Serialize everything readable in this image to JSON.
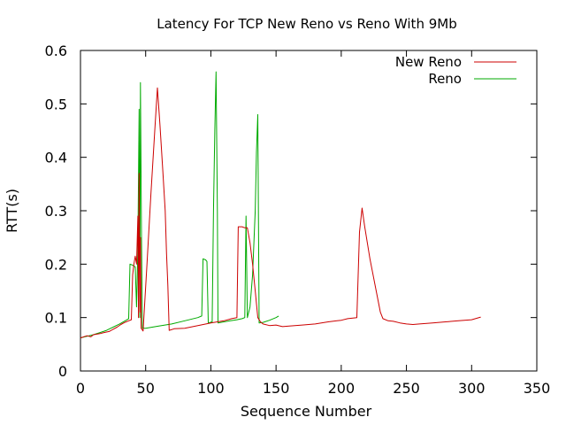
{
  "chart_data": {
    "type": "line",
    "title": "Latency For TCP New Reno vs Reno With 9Mb",
    "xlabel": "Sequence Number",
    "ylabel": "RTT(s)",
    "xlim": [
      0,
      350
    ],
    "ylim": [
      0,
      0.6
    ],
    "x_ticks": [
      0,
      50,
      100,
      150,
      200,
      250,
      300,
      350
    ],
    "y_ticks": [
      0,
      0.1,
      0.2,
      0.3,
      0.4,
      0.5,
      0.6
    ],
    "x_tick_labels": [
      "0",
      "50",
      "100",
      "150",
      "200",
      "250",
      "300",
      "350"
    ],
    "y_tick_labels": [
      "0",
      "0.1",
      "0.2",
      "0.3",
      "0.4",
      "0.5",
      "0.6"
    ],
    "grid": false,
    "legend_position": "top-right",
    "series": [
      {
        "name": "New Reno",
        "color": "#cc0000",
        "points": [
          [
            0,
            0.062
          ],
          [
            5,
            0.066
          ],
          [
            8,
            0.064
          ],
          [
            10,
            0.068
          ],
          [
            15,
            0.07
          ],
          [
            18,
            0.072
          ],
          [
            22,
            0.074
          ],
          [
            25,
            0.078
          ],
          [
            28,
            0.082
          ],
          [
            31,
            0.087
          ],
          [
            34,
            0.091
          ],
          [
            37,
            0.094
          ],
          [
            39,
            0.096
          ],
          [
            40,
            0.18
          ],
          [
            41,
            0.2
          ],
          [
            42,
            0.215
          ],
          [
            43,
            0.2
          ],
          [
            44,
            0.29
          ],
          [
            44.5,
            0.1
          ],
          [
            45,
            0.37
          ],
          [
            45.6,
            0.11
          ],
          [
            46,
            0.25
          ],
          [
            46.5,
            0.08
          ],
          [
            48,
            0.075
          ],
          [
            51,
            0.2
          ],
          [
            54,
            0.33
          ],
          [
            57,
            0.45
          ],
          [
            59,
            0.53
          ],
          [
            61,
            0.46
          ],
          [
            63,
            0.38
          ],
          [
            65,
            0.3
          ],
          [
            66,
            0.22
          ],
          [
            67,
            0.16
          ],
          [
            68,
            0.076
          ],
          [
            72,
            0.079
          ],
          [
            80,
            0.08
          ],
          [
            90,
            0.085
          ],
          [
            100,
            0.09
          ],
          [
            110,
            0.094
          ],
          [
            116,
            0.098
          ],
          [
            120,
            0.1
          ],
          [
            121,
            0.27
          ],
          [
            124,
            0.27
          ],
          [
            126,
            0.268
          ],
          [
            128,
            0.268
          ],
          [
            130,
            0.24
          ],
          [
            132,
            0.2
          ],
          [
            134,
            0.15
          ],
          [
            136,
            0.1
          ],
          [
            138,
            0.092
          ],
          [
            140,
            0.088
          ],
          [
            145,
            0.085
          ],
          [
            150,
            0.086
          ],
          [
            155,
            0.083
          ],
          [
            160,
            0.084
          ],
          [
            170,
            0.086
          ],
          [
            180,
            0.088
          ],
          [
            190,
            0.092
          ],
          [
            200,
            0.095
          ],
          [
            205,
            0.098
          ],
          [
            212,
            0.1
          ],
          [
            214,
            0.26
          ],
          [
            216,
            0.305
          ],
          [
            218,
            0.27
          ],
          [
            222,
            0.21
          ],
          [
            226,
            0.16
          ],
          [
            230,
            0.11
          ],
          [
            232,
            0.098
          ],
          [
            236,
            0.094
          ],
          [
            240,
            0.093
          ],
          [
            245,
            0.09
          ],
          [
            250,
            0.088
          ],
          [
            255,
            0.087
          ],
          [
            260,
            0.088
          ],
          [
            270,
            0.09
          ],
          [
            280,
            0.092
          ],
          [
            290,
            0.094
          ],
          [
            300,
            0.096
          ],
          [
            307,
            0.101
          ]
        ]
      },
      {
        "name": "Reno",
        "color": "#00aa00",
        "points": [
          [
            0,
            0.062
          ],
          [
            5,
            0.065
          ],
          [
            10,
            0.068
          ],
          [
            15,
            0.072
          ],
          [
            20,
            0.076
          ],
          [
            25,
            0.082
          ],
          [
            30,
            0.088
          ],
          [
            35,
            0.095
          ],
          [
            37,
            0.098
          ],
          [
            38,
            0.2
          ],
          [
            40,
            0.198
          ],
          [
            42,
            0.195
          ],
          [
            43,
            0.12
          ],
          [
            44,
            0.23
          ],
          [
            45,
            0.49
          ],
          [
            45.5,
            0.1
          ],
          [
            46,
            0.54
          ],
          [
            46.8,
            0.25
          ],
          [
            47.5,
            0.08
          ],
          [
            50,
            0.08
          ],
          [
            55,
            0.082
          ],
          [
            60,
            0.084
          ],
          [
            70,
            0.088
          ],
          [
            80,
            0.094
          ],
          [
            90,
            0.1
          ],
          [
            93,
            0.103
          ],
          [
            94,
            0.21
          ],
          [
            96,
            0.208
          ],
          [
            97,
            0.205
          ],
          [
            98,
            0.09
          ],
          [
            101,
            0.092
          ],
          [
            102,
            0.3
          ],
          [
            103,
            0.45
          ],
          [
            104,
            0.56
          ],
          [
            105,
            0.3
          ],
          [
            105.5,
            0.09
          ],
          [
            110,
            0.092
          ],
          [
            115,
            0.094
          ],
          [
            120,
            0.096
          ],
          [
            124,
            0.098
          ],
          [
            126,
            0.1
          ],
          [
            127,
            0.29
          ],
          [
            128,
            0.1
          ],
          [
            130,
            0.12
          ],
          [
            132,
            0.18
          ],
          [
            134,
            0.3
          ],
          [
            135,
            0.41
          ],
          [
            136,
            0.48
          ],
          [
            137,
            0.09
          ],
          [
            140,
            0.091
          ],
          [
            145,
            0.095
          ],
          [
            150,
            0.1
          ],
          [
            152,
            0.103
          ]
        ]
      }
    ]
  }
}
